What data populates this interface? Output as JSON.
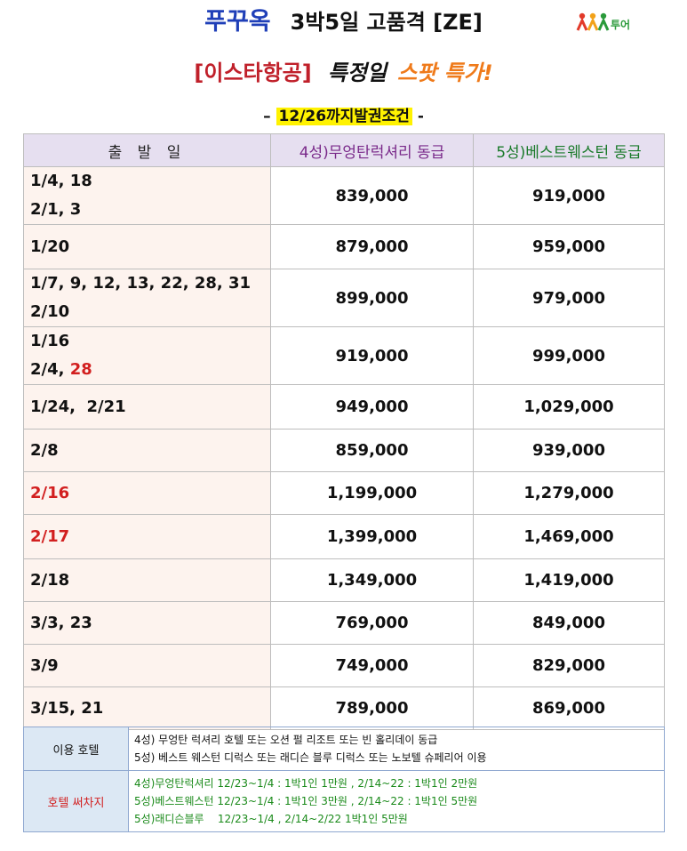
{
  "header": {
    "brand": "푸꾸옥",
    "rest": "3박5일 고품격 [ZE]",
    "logo_text": "투어"
  },
  "subtitle": {
    "airline": "[이스타항공]",
    "special": "특정일",
    "spot": "스팟 특가!"
  },
  "condition": {
    "prefix": "–",
    "text": "12/26까지발권조건",
    "suffix": "-"
  },
  "table": {
    "headers": [
      "출 발 일",
      "4성)무엉탄럭셔리 동급",
      "5성)베스트웨스턴 동급"
    ],
    "rows": [
      {
        "dates": [
          [
            {
              "t": "1/4, 18"
            }
          ],
          [
            {
              "t": "2/1, 3"
            }
          ]
        ],
        "p4": "839,000",
        "p5": "919,000"
      },
      {
        "dates": [
          [
            {
              "t": "1/20"
            }
          ]
        ],
        "p4": "879,000",
        "p5": "959,000"
      },
      {
        "dates": [
          [
            {
              "t": "1/7, 9, 12, 13, 22, 28, 31"
            }
          ],
          [
            {
              "t": "2/10"
            }
          ]
        ],
        "p4": "899,000",
        "p5": "979,000"
      },
      {
        "dates": [
          [
            {
              "t": "1/16"
            }
          ],
          [
            {
              "t": "2/4, "
            },
            {
              "t": "28",
              "red": true
            }
          ]
        ],
        "p4": "919,000",
        "p5": "999,000"
      },
      {
        "dates": [
          [
            {
              "t": "1/24,  2/21"
            }
          ]
        ],
        "p4": "949,000",
        "p5": "1,029,000"
      },
      {
        "dates": [
          [
            {
              "t": "2/8"
            }
          ]
        ],
        "p4": "859,000",
        "p5": "939,000"
      },
      {
        "dates": [
          [
            {
              "t": "2/16",
              "red": true
            }
          ]
        ],
        "p4": "1,199,000",
        "p5": "1,279,000"
      },
      {
        "dates": [
          [
            {
              "t": "2/17",
              "red": true
            }
          ]
        ],
        "p4": "1,399,000",
        "p5": "1,469,000"
      },
      {
        "dates": [
          [
            {
              "t": "2/18"
            }
          ]
        ],
        "p4": "1,349,000",
        "p5": "1,419,000"
      },
      {
        "dates": [
          [
            {
              "t": "3/3, 23"
            }
          ]
        ],
        "p4": "769,000",
        "p5": "849,000"
      },
      {
        "dates": [
          [
            {
              "t": "3/9"
            }
          ]
        ],
        "p4": "749,000",
        "p5": "829,000"
      },
      {
        "dates": [
          [
            {
              "t": "3/15, 21"
            }
          ]
        ],
        "p4": "789,000",
        "p5": "869,000"
      }
    ]
  },
  "notes": {
    "hotel_label": "이용 호텔",
    "hotel_lines": [
      "4성) 무엉탄 럭셔리 호텔 또는 오션 펄 리조트 또는 빈 홀리데이 동급",
      "5성) 베스트 웨스턴 디럭스 또는 래디슨 블루 디럭스 또는 노보텔 슈페리어 이용"
    ],
    "surcharge_label": "호텔 써차지",
    "surcharge_lines": [
      "4성)무엉탄럭셔리 12/23~1/4 : 1박1인 1만원 , 2/14~22 : 1박1인 2만원",
      "5성)베스트웨스턴 12/23~1/4 : 1박1인 3만원 , 2/14~22 : 1박1인 5만원",
      "5성)래디슨블루    12/23~1/4 , 2/14~2/22 1박1인 5만원"
    ]
  },
  "colors": {
    "brand_blue": "#1f3fb8",
    "airline_red": "#c0202a",
    "spot_orange": "#ef7a1a",
    "highlight_yellow": "#fff200",
    "header_bg": "#e6dff0",
    "date_bg": "#fdf3ee",
    "note_label_bg": "#dce8f4",
    "surcharge_green": "#1a8a1a"
  }
}
